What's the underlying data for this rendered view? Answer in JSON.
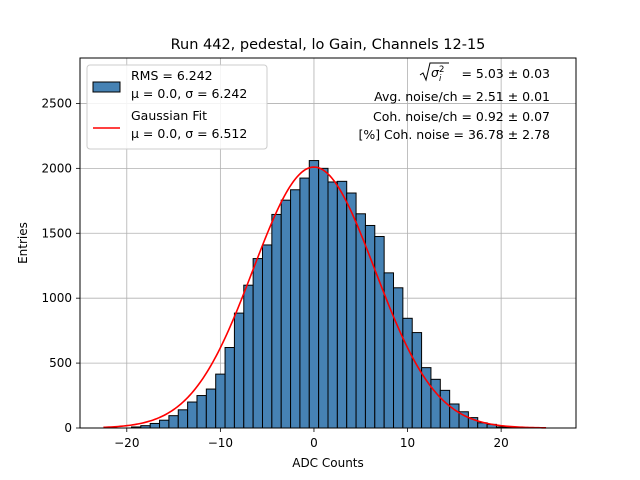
{
  "chart_data": {
    "type": "bar",
    "title": "Run 442, pedestal, lo Gain, Channels 12-15",
    "xlabel": "ADC Counts",
    "ylabel": "Entries",
    "xlim": [
      -25,
      28
    ],
    "ylim": [
      0,
      2850
    ],
    "xticks": [
      -20,
      -10,
      0,
      10,
      20
    ],
    "xtick_labels": [
      "−20",
      "−10",
      "0",
      "10",
      "20"
    ],
    "yticks": [
      0,
      500,
      1000,
      1500,
      2000,
      2500
    ],
    "ytick_labels": [
      "0",
      "500",
      "1000",
      "1500",
      "2000",
      "2500"
    ],
    "grid": true,
    "bin_width": 1,
    "bins": [
      {
        "x": -19,
        "y": 8
      },
      {
        "x": -18,
        "y": 18
      },
      {
        "x": -17,
        "y": 35
      },
      {
        "x": -16,
        "y": 60
      },
      {
        "x": -15,
        "y": 95
      },
      {
        "x": -14,
        "y": 140
      },
      {
        "x": -13,
        "y": 200
      },
      {
        "x": -12,
        "y": 250
      },
      {
        "x": -11,
        "y": 300
      },
      {
        "x": -10,
        "y": 415
      },
      {
        "x": -9,
        "y": 620
      },
      {
        "x": -8,
        "y": 885
      },
      {
        "x": -7,
        "y": 1100
      },
      {
        "x": -6,
        "y": 1305
      },
      {
        "x": -5,
        "y": 1410
      },
      {
        "x": -4,
        "y": 1645
      },
      {
        "x": -3,
        "y": 1755
      },
      {
        "x": -2,
        "y": 1835
      },
      {
        "x": -1,
        "y": 1925
      },
      {
        "x": 0,
        "y": 2060
      },
      {
        "x": 1,
        "y": 2000
      },
      {
        "x": 2,
        "y": 1895
      },
      {
        "x": 3,
        "y": 1900
      },
      {
        "x": 4,
        "y": 1810
      },
      {
        "x": 5,
        "y": 1650
      },
      {
        "x": 6,
        "y": 1560
      },
      {
        "x": 7,
        "y": 1475
      },
      {
        "x": 8,
        "y": 1195
      },
      {
        "x": 9,
        "y": 1080
      },
      {
        "x": 10,
        "y": 845
      },
      {
        "x": 11,
        "y": 735
      },
      {
        "x": 12,
        "y": 465
      },
      {
        "x": 13,
        "y": 375
      },
      {
        "x": 14,
        "y": 290
      },
      {
        "x": 15,
        "y": 185
      },
      {
        "x": 16,
        "y": 125
      },
      {
        "x": 17,
        "y": 80
      },
      {
        "x": 18,
        "y": 40
      },
      {
        "x": 19,
        "y": 28
      },
      {
        "x": 20,
        "y": 8
      },
      {
        "x": 21,
        "y": 4
      }
    ],
    "hist_color": "#4682b4",
    "fit": {
      "mu": 0.0,
      "sigma": 6.512,
      "amplitude": 2010,
      "x_range": [
        -22.5,
        24.8
      ],
      "color": "#ff0000"
    },
    "legend": {
      "position": "top-left",
      "entries": [
        {
          "label": "RMS = 6.242",
          "sublabel": "μ = 0.0, σ = 6.242",
          "kind": "patch",
          "color": "#4682b4"
        },
        {
          "label": "Gaussian Fit",
          "sublabel": "μ = 0.0, σ = 6.512",
          "kind": "line",
          "color": "#ff0000"
        }
      ]
    },
    "annotations": {
      "sqrt_value": " = 5.03 ± 0.03",
      "lines": [
        "Avg. noise/ch = 2.51 ± 0.01",
        "Coh. noise/ch = 0.92 ± 0.07",
        "[%] Coh. noise = 36.78 ± 2.78"
      ]
    }
  }
}
